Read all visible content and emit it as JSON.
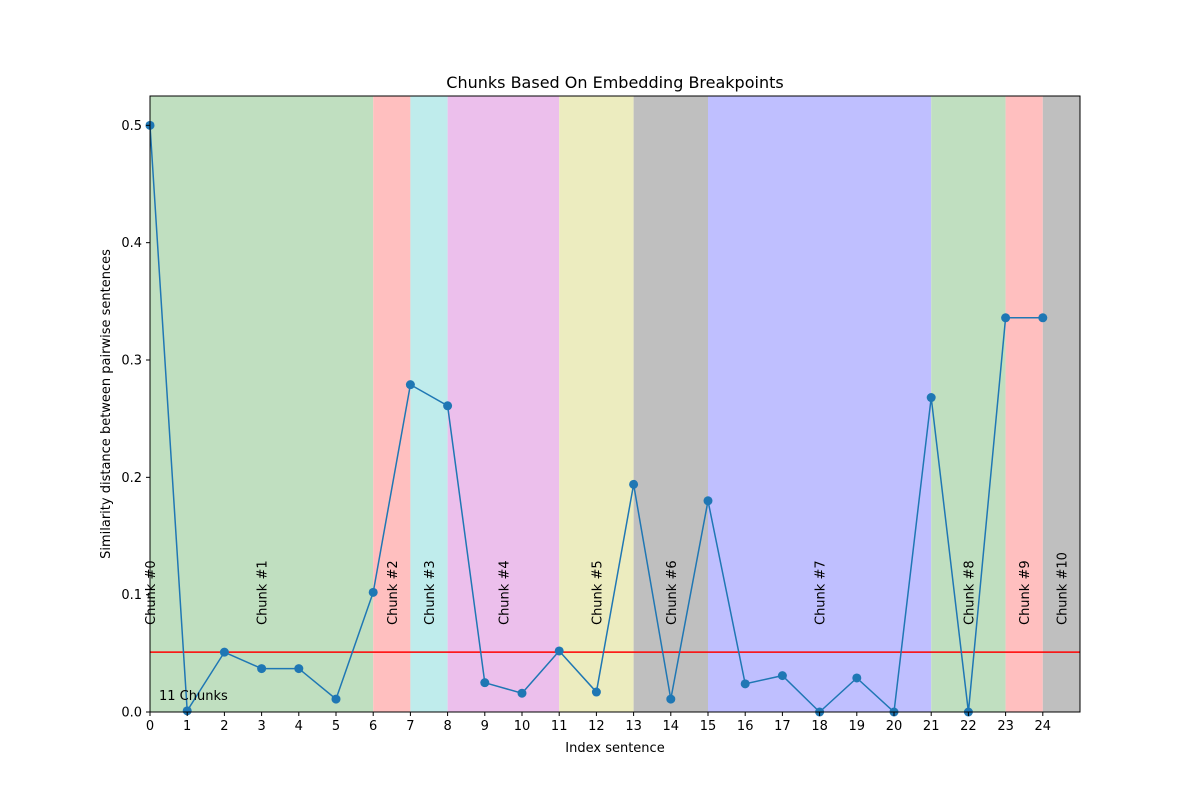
{
  "chart_data": {
    "type": "line",
    "title": "Chunks Based On Embedding Breakpoints",
    "xlabel": "Index sentence",
    "ylabel": "Similarity distance between pairwise sentences",
    "xlim": [
      0,
      25
    ],
    "ylim": [
      0,
      0.525
    ],
    "x_ticks": [
      0,
      1,
      2,
      3,
      4,
      5,
      6,
      7,
      8,
      9,
      10,
      11,
      12,
      13,
      14,
      15,
      16,
      17,
      18,
      19,
      20,
      21,
      22,
      23,
      24
    ],
    "y_ticks": [
      0.0,
      0.1,
      0.2,
      0.3,
      0.4,
      0.5
    ],
    "y_tick_labels": [
      "0.0",
      "0.1",
      "0.2",
      "0.3",
      "0.4",
      "0.5"
    ],
    "grid": false,
    "series": [
      {
        "color": "#1f77b4",
        "x": [
          0,
          1,
          2,
          3,
          4,
          5,
          6,
          7,
          8,
          9,
          10,
          11,
          12,
          13,
          14,
          15,
          16,
          17,
          18,
          19,
          20,
          21,
          22,
          23,
          24
        ],
        "y": [
          0.5,
          0.001,
          0.051,
          0.037,
          0.037,
          0.011,
          0.102,
          0.279,
          0.261,
          0.025,
          0.016,
          0.052,
          0.017,
          0.194,
          0.011,
          0.18,
          0.024,
          0.031,
          0.0,
          0.029,
          0.0,
          0.268,
          0.0,
          0.336,
          0.336
        ],
        "marker": "circle"
      }
    ],
    "threshold": {
      "value": 0.051,
      "color": "#ff0000"
    },
    "chunks": [
      {
        "label": "Chunk #0",
        "start": 0,
        "end": 6,
        "color": "#c0dfc0"
      },
      {
        "label": "Chunk #1",
        "start": 0,
        "end": 6,
        "color": "#c0dfc0"
      },
      {
        "label": "Chunk #2",
        "start": 6,
        "end": 7,
        "color": "#ffbfbf"
      },
      {
        "label": "Chunk #3",
        "start": 7,
        "end": 8,
        "color": "#bfecec"
      },
      {
        "label": "Chunk #4",
        "start": 8,
        "end": 11,
        "color": "#ecbfec"
      },
      {
        "label": "Chunk #5",
        "start": 11,
        "end": 13,
        "color": "#ececbf"
      },
      {
        "label": "Chunk #6",
        "start": 13,
        "end": 15,
        "color": "#bfbfbf"
      },
      {
        "label": "Chunk #7",
        "start": 15,
        "end": 21,
        "color": "#bfbfff"
      },
      {
        "label": "Chunk #8",
        "start": 21,
        "end": 23,
        "color": "#c0dfc0"
      },
      {
        "label": "Chunk #9",
        "start": 23,
        "end": 24,
        "color": "#ffbfbf"
      },
      {
        "label": "Chunk #10",
        "start": 24,
        "end": 25,
        "color": "#bfbfbf"
      }
    ],
    "chunk_label_x": [
      0,
      3,
      6.5,
      7.5,
      9.5,
      12,
      14,
      18,
      22,
      23.5,
      24.5
    ],
    "annotation": "11 Chunks"
  }
}
